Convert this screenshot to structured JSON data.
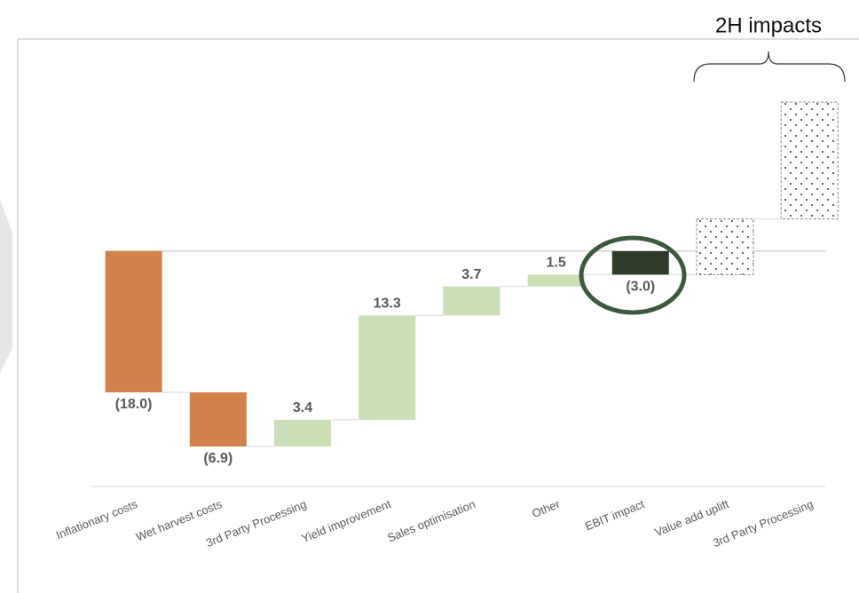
{
  "chart_data": {
    "type": "waterfall",
    "annotation": "2H impacts",
    "categories": [
      "Inflationary costs",
      "Wet harvest costs",
      "3rd Party Processing",
      "Yield improvement",
      "Sales optimisation",
      "Other",
      "EBIT impact",
      "Value add uplift",
      "3rd Party Processing"
    ],
    "values": [
      -18.0,
      -6.9,
      3.4,
      13.3,
      3.7,
      1.5,
      -3.0,
      7.1,
      14.9
    ],
    "value_labels": [
      "(18.0)",
      "(6.9)",
      "3.4",
      "13.3",
      "3.7",
      "1.5",
      "(3.0)",
      null,
      null
    ],
    "measure": [
      "relative",
      "relative",
      "relative",
      "relative",
      "relative",
      "relative",
      "total",
      "relative",
      "relative"
    ],
    "colors": [
      "#d4804a",
      "#d4804a",
      "#c9dfb5",
      "#c9dfb5",
      "#c9dfb5",
      "#c9dfb5",
      "#2d3b27",
      "dotted",
      "dotted"
    ],
    "ylim": [
      -30,
      25
    ]
  }
}
